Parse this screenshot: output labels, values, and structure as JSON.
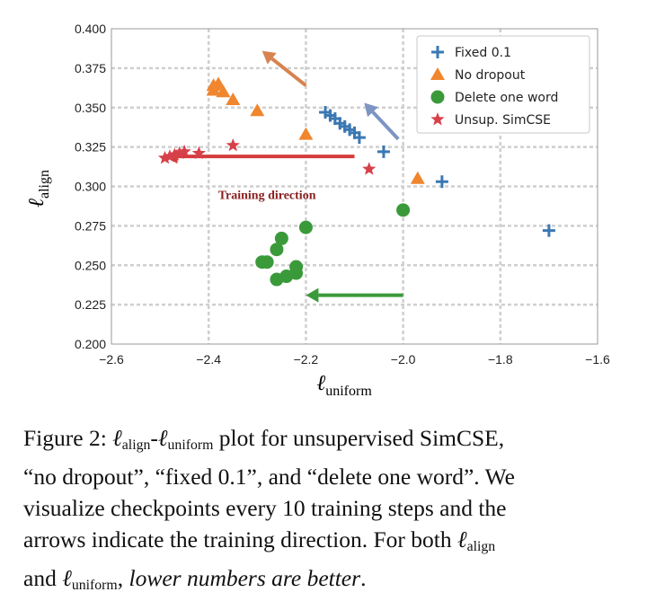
{
  "chart_data": {
    "type": "scatter",
    "title": "",
    "xlabel": "uniform",
    "ylabel": "align",
    "xlim": [
      -2.6,
      -1.6
    ],
    "ylim": [
      0.2,
      0.4
    ],
    "xticks": [
      "−2.6",
      "−2.4",
      "−2.2",
      "−2.0",
      "−1.8",
      "−1.6"
    ],
    "yticks": [
      "0.200",
      "0.225",
      "0.250",
      "0.275",
      "0.300",
      "0.325",
      "0.350",
      "0.375",
      "0.400"
    ],
    "grid": true,
    "legend_position": "top-right",
    "series": [
      {
        "name": "Fixed 0.1",
        "marker": "plus",
        "color": "#3a78b3",
        "points": [
          [
            -2.16,
            0.347
          ],
          [
            -2.15,
            0.345
          ],
          [
            -2.14,
            0.343
          ],
          [
            -2.13,
            0.34
          ],
          [
            -2.12,
            0.338
          ],
          [
            -2.11,
            0.336
          ],
          [
            -2.1,
            0.334
          ],
          [
            -2.09,
            0.331
          ],
          [
            -2.04,
            0.322
          ],
          [
            -1.92,
            0.303
          ],
          [
            -1.7,
            0.272
          ]
        ]
      },
      {
        "name": "No dropout",
        "marker": "triangle",
        "color": "#f0862e",
        "points": [
          [
            -2.39,
            0.364
          ],
          [
            -2.38,
            0.365
          ],
          [
            -2.37,
            0.36
          ],
          [
            -2.39,
            0.361
          ],
          [
            -2.35,
            0.355
          ],
          [
            -2.3,
            0.348
          ],
          [
            -2.2,
            0.333
          ],
          [
            -1.97,
            0.305
          ]
        ]
      },
      {
        "name": "Delete one word",
        "marker": "circle",
        "color": "#3a9a3a",
        "points": [
          [
            -2.29,
            0.252
          ],
          [
            -2.28,
            0.252
          ],
          [
            -2.26,
            0.26
          ],
          [
            -2.25,
            0.267
          ],
          [
            -2.26,
            0.241
          ],
          [
            -2.24,
            0.243
          ],
          [
            -2.22,
            0.245
          ],
          [
            -2.22,
            0.249
          ],
          [
            -2.2,
            0.274
          ],
          [
            -2.0,
            0.285
          ]
        ]
      },
      {
        "name": "Unsup. SimCSE",
        "marker": "star",
        "color": "#d6404a",
        "points": [
          [
            -2.49,
            0.318
          ],
          [
            -2.48,
            0.319
          ],
          [
            -2.47,
            0.32
          ],
          [
            -2.46,
            0.321
          ],
          [
            -2.45,
            0.322
          ],
          [
            -2.42,
            0.321
          ],
          [
            -2.35,
            0.326
          ],
          [
            -2.07,
            0.311
          ]
        ]
      }
    ],
    "arrows": [
      {
        "color": "#d7834f",
        "from": [
          -2.2,
          0.364
        ],
        "to": [
          -2.29,
          0.386
        ]
      },
      {
        "color": "#7d95c3",
        "from": [
          -2.01,
          0.33
        ],
        "to": [
          -2.08,
          0.353
        ]
      },
      {
        "color": "#d43b3b",
        "from": [
          -2.1,
          0.319
        ],
        "to": [
          -2.49,
          0.319
        ]
      },
      {
        "color": "#3a9a3a",
        "from": [
          -2.0,
          0.231
        ],
        "to": [
          -2.2,
          0.231
        ]
      }
    ],
    "annotation": {
      "text": "Training direction",
      "color": "#8b2020",
      "at": [
        -2.28,
        0.292
      ]
    }
  },
  "caption": {
    "figure_label": "Figure 2:",
    "ell": "ℓ",
    "sub_align": "align",
    "dash": "-",
    "sub_uniform": "uniform",
    "line1_rest": " plot for unsupervised SimCSE,",
    "line2": "“no dropout”, “fixed 0.1”, and “delete one word”. We",
    "line3": "visualize checkpoints every 10 training steps and the",
    "line4_a": "arrows indicate the training direction. For both ",
    "line5_a": "and ",
    "line5_comma": ", ",
    "line5_italic": "lower numbers are better",
    "line5_end": "."
  }
}
